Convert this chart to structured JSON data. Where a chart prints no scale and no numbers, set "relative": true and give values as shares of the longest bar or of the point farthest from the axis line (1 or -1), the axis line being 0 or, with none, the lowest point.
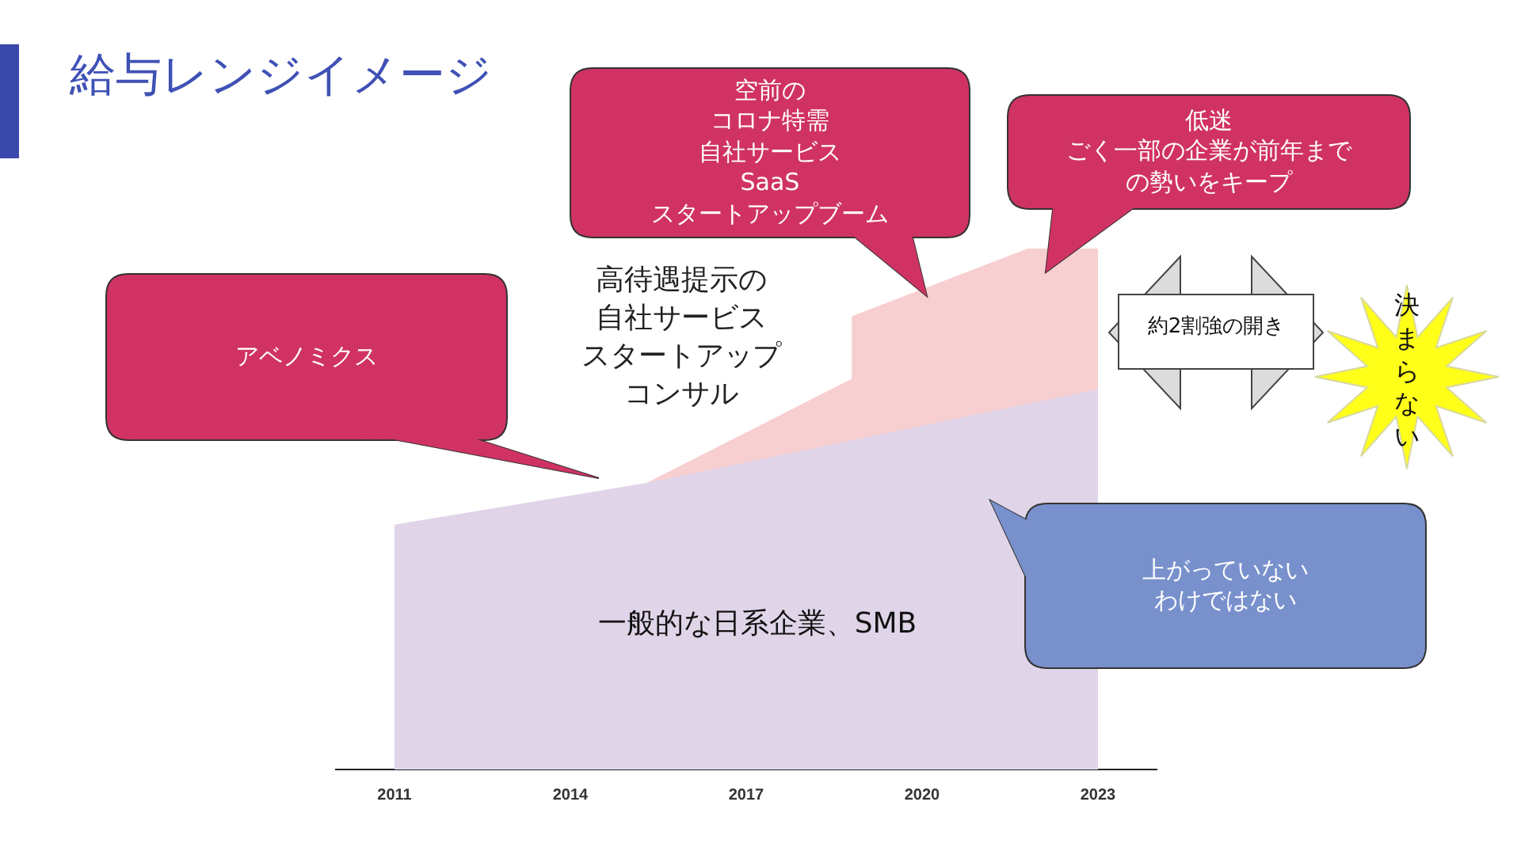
{
  "chart_data": {
    "type": "area",
    "title": "給与レンジイメージ",
    "relative": true,
    "xlim": [
      2010,
      2024
    ],
    "xticks": [
      2011,
      2014,
      2017,
      2020,
      2023
    ],
    "series": [
      {
        "name": "一般的な日系企業、SMB",
        "color": "#e0d5e8",
        "x": [
          2011,
          2015.3,
          2023
        ],
        "values": [
          0.47,
          0.55,
          0.73
        ]
      },
      {
        "name": "高待遇提示の自社サービススタートアップコンサル",
        "color": "#f8cfd0",
        "x": [
          2015.3,
          2018.8,
          2018.8,
          2021.8,
          2023
        ],
        "values": [
          0.55,
          0.75,
          0.87,
          1,
          1
        ]
      }
    ],
    "annotations": [
      "アベノミクス",
      "空前のコロナ特需自社サービスSaaSスタートアップブーム",
      "低迷ごく一部の企業が前年までの勢いをキープ",
      "上がっていないわけではない",
      "約2割強の開き",
      "決まらない"
    ]
  }
}
